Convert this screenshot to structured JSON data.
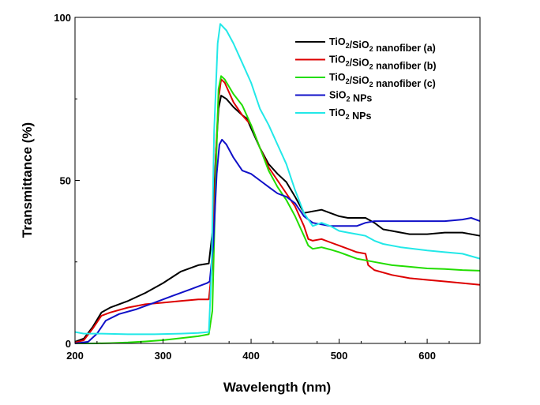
{
  "chart_data": {
    "type": "line",
    "xlabel": "Wavelength (nm)",
    "ylabel": "Transmittance (%)",
    "xlim": [
      200,
      660
    ],
    "ylim": [
      0,
      100
    ],
    "xticks": [
      200,
      300,
      400,
      500,
      600
    ],
    "yticks": [
      0,
      50,
      100
    ],
    "grid": false,
    "legend_position": "top-right",
    "series": [
      {
        "name": "TiO2/SiO2 nanofiber (a)",
        "name_parts": [
          {
            "t": "TiO",
            "sub": false
          },
          {
            "t": "2",
            "sub": true
          },
          {
            "t": "/SiO",
            "sub": false
          },
          {
            "t": "2",
            "sub": true
          },
          {
            "t": " nanofiber (a)",
            "sub": false
          }
        ],
        "color": "#000000",
        "points": [
          [
            200,
            0.5
          ],
          [
            210,
            1.5
          ],
          [
            220,
            5
          ],
          [
            230,
            9.5
          ],
          [
            240,
            11
          ],
          [
            260,
            13
          ],
          [
            280,
            15.5
          ],
          [
            300,
            18.5
          ],
          [
            320,
            22
          ],
          [
            340,
            24
          ],
          [
            352,
            24.5
          ],
          [
            356,
            34
          ],
          [
            360,
            58
          ],
          [
            363,
            72
          ],
          [
            366,
            76
          ],
          [
            372,
            75
          ],
          [
            380,
            72.5
          ],
          [
            390,
            70
          ],
          [
            395,
            69
          ],
          [
            400,
            66
          ],
          [
            410,
            60
          ],
          [
            420,
            55
          ],
          [
            430,
            52
          ],
          [
            440,
            49.5
          ],
          [
            450,
            45
          ],
          [
            460,
            40
          ],
          [
            470,
            40.5
          ],
          [
            480,
            41
          ],
          [
            490,
            40
          ],
          [
            500,
            39
          ],
          [
            510,
            38.5
          ],
          [
            520,
            38.5
          ],
          [
            530,
            38.5
          ],
          [
            540,
            37
          ],
          [
            550,
            35
          ],
          [
            560,
            34.5
          ],
          [
            580,
            33.5
          ],
          [
            600,
            33.5
          ],
          [
            620,
            34
          ],
          [
            640,
            34
          ],
          [
            660,
            33
          ]
        ]
      },
      {
        "name": "TiO2/SiO2 nanofiber (b)",
        "name_parts": [
          {
            "t": "TiO",
            "sub": false
          },
          {
            "t": "2",
            "sub": true
          },
          {
            "t": "/SiO",
            "sub": false
          },
          {
            "t": "2",
            "sub": true
          },
          {
            "t": " nanofiber (b)",
            "sub": false
          }
        ],
        "color": "#dd0000",
        "points": [
          [
            200,
            0.3
          ],
          [
            210,
            1
          ],
          [
            220,
            4.5
          ],
          [
            230,
            8.5
          ],
          [
            240,
            9.5
          ],
          [
            260,
            11
          ],
          [
            280,
            12
          ],
          [
            300,
            12.5
          ],
          [
            320,
            13
          ],
          [
            340,
            13.5
          ],
          [
            352,
            13.5
          ],
          [
            356,
            24
          ],
          [
            360,
            58
          ],
          [
            363,
            75
          ],
          [
            366,
            81
          ],
          [
            370,
            80
          ],
          [
            380,
            74
          ],
          [
            390,
            70
          ],
          [
            400,
            67
          ],
          [
            410,
            60
          ],
          [
            420,
            54
          ],
          [
            430,
            50
          ],
          [
            440,
            46
          ],
          [
            450,
            42
          ],
          [
            460,
            36
          ],
          [
            465,
            32
          ],
          [
            470,
            31.5
          ],
          [
            480,
            32
          ],
          [
            490,
            31
          ],
          [
            500,
            30
          ],
          [
            510,
            29
          ],
          [
            520,
            28
          ],
          [
            530,
            27.5
          ],
          [
            533,
            24
          ],
          [
            540,
            22.5
          ],
          [
            560,
            21
          ],
          [
            580,
            20
          ],
          [
            600,
            19.5
          ],
          [
            620,
            19
          ],
          [
            640,
            18.5
          ],
          [
            660,
            18
          ]
        ]
      },
      {
        "name": "TiO2/SiO2 nanofiber (c)",
        "name_parts": [
          {
            "t": "TiO",
            "sub": false
          },
          {
            "t": "2",
            "sub": true
          },
          {
            "t": "/SiO",
            "sub": false
          },
          {
            "t": "2",
            "sub": true
          },
          {
            "t": " nanofiber (c)",
            "sub": false
          }
        ],
        "color": "#22dd00",
        "points": [
          [
            200,
            0
          ],
          [
            220,
            0
          ],
          [
            240,
            0.1
          ],
          [
            260,
            0.3
          ],
          [
            280,
            0.6
          ],
          [
            300,
            1
          ],
          [
            320,
            1.6
          ],
          [
            340,
            2.2
          ],
          [
            352,
            2.8
          ],
          [
            356,
            10
          ],
          [
            360,
            52
          ],
          [
            363,
            78
          ],
          [
            366,
            82
          ],
          [
            370,
            81
          ],
          [
            380,
            76.5
          ],
          [
            390,
            73
          ],
          [
            400,
            67
          ],
          [
            410,
            60
          ],
          [
            420,
            53
          ],
          [
            430,
            48
          ],
          [
            440,
            44
          ],
          [
            450,
            39
          ],
          [
            460,
            33
          ],
          [
            465,
            30
          ],
          [
            470,
            29
          ],
          [
            480,
            29.5
          ],
          [
            490,
            28.8
          ],
          [
            500,
            28
          ],
          [
            510,
            27
          ],
          [
            520,
            26
          ],
          [
            530,
            25.5
          ],
          [
            540,
            25
          ],
          [
            560,
            24
          ],
          [
            580,
            23.5
          ],
          [
            600,
            23
          ],
          [
            620,
            22.8
          ],
          [
            640,
            22.5
          ],
          [
            660,
            22.3
          ]
        ]
      },
      {
        "name": "SiO2 NPs",
        "name_parts": [
          {
            "t": "SiO",
            "sub": false
          },
          {
            "t": "2",
            "sub": true
          },
          {
            "t": " NPs",
            "sub": false
          }
        ],
        "color": "#1010c8",
        "points": [
          [
            200,
            0
          ],
          [
            215,
            0.5
          ],
          [
            225,
            3
          ],
          [
            235,
            7
          ],
          [
            250,
            9
          ],
          [
            270,
            10.5
          ],
          [
            290,
            12.5
          ],
          [
            310,
            14.5
          ],
          [
            330,
            16.5
          ],
          [
            350,
            18.5
          ],
          [
            353,
            19
          ],
          [
            357,
            30
          ],
          [
            361,
            52
          ],
          [
            364,
            61
          ],
          [
            367,
            62.5
          ],
          [
            372,
            61
          ],
          [
            380,
            57
          ],
          [
            390,
            53
          ],
          [
            400,
            52
          ],
          [
            410,
            50
          ],
          [
            420,
            48
          ],
          [
            430,
            46
          ],
          [
            440,
            45
          ],
          [
            450,
            43
          ],
          [
            460,
            39
          ],
          [
            470,
            37
          ],
          [
            480,
            36.5
          ],
          [
            490,
            36
          ],
          [
            500,
            36
          ],
          [
            510,
            36
          ],
          [
            520,
            36
          ],
          [
            530,
            37
          ],
          [
            540,
            37.5
          ],
          [
            560,
            37.5
          ],
          [
            580,
            37.5
          ],
          [
            600,
            37.5
          ],
          [
            620,
            37.5
          ],
          [
            640,
            38
          ],
          [
            650,
            38.5
          ],
          [
            660,
            37.5
          ]
        ]
      },
      {
        "name": "TiO2 NPs",
        "name_parts": [
          {
            "t": "TiO",
            "sub": false
          },
          {
            "t": "2",
            "sub": true
          },
          {
            "t": " NPs",
            "sub": false
          }
        ],
        "color": "#22e8e8",
        "points": [
          [
            200,
            3.5
          ],
          [
            210,
            3
          ],
          [
            230,
            3
          ],
          [
            260,
            2.8
          ],
          [
            290,
            2.8
          ],
          [
            320,
            3
          ],
          [
            340,
            3.2
          ],
          [
            352,
            3.5
          ],
          [
            355,
            22
          ],
          [
            358,
            65
          ],
          [
            362,
            92
          ],
          [
            365,
            98
          ],
          [
            372,
            96
          ],
          [
            380,
            92
          ],
          [
            390,
            86
          ],
          [
            400,
            80
          ],
          [
            410,
            72
          ],
          [
            420,
            67
          ],
          [
            430,
            61
          ],
          [
            440,
            55
          ],
          [
            450,
            47
          ],
          [
            460,
            40
          ],
          [
            470,
            36
          ],
          [
            480,
            37
          ],
          [
            490,
            36
          ],
          [
            500,
            34.5
          ],
          [
            510,
            34
          ],
          [
            520,
            33.5
          ],
          [
            530,
            33
          ],
          [
            540,
            31.5
          ],
          [
            550,
            30.5
          ],
          [
            570,
            29.5
          ],
          [
            600,
            28.5
          ],
          [
            620,
            28
          ],
          [
            640,
            27.5
          ],
          [
            660,
            26
          ]
        ]
      }
    ]
  }
}
